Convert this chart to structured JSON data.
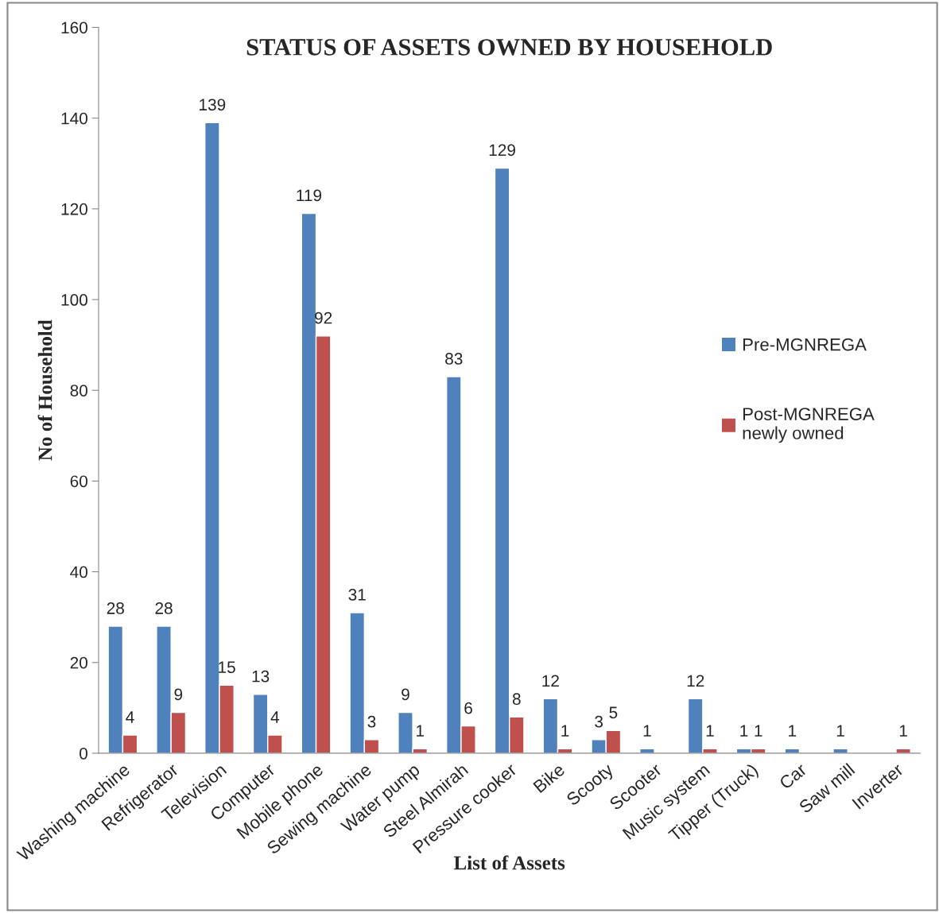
{
  "chart_data": {
    "type": "bar",
    "title": "STATUS OF ASSETS OWNED BY HOUSEHOLD",
    "xlabel": "List of Assets",
    "ylabel": "No of Household",
    "categories": [
      "Washing machine",
      "Refrigerator",
      "Television",
      "Computer",
      "Mobile phone",
      "Sewing machine",
      "Water pump",
      "Steel Almirah",
      "Pressure cooker",
      "Bike",
      "Scooty",
      "Scooter",
      "Music system",
      "Tipper (Truck)",
      "Car",
      "Saw mill",
      "Inverter"
    ],
    "series": [
      {
        "name": "Pre-MGNREGA",
        "color": "#4f81bd",
        "values": [
          28,
          28,
          139,
          13,
          119,
          31,
          9,
          83,
          129,
          12,
          3,
          1,
          12,
          1,
          1,
          1,
          null
        ]
      },
      {
        "name": "Post-MGNREGA\nnewly owned",
        "color": "#c0504d",
        "values": [
          4,
          9,
          15,
          4,
          92,
          3,
          1,
          6,
          8,
          1,
          5,
          null,
          1,
          1,
          null,
          null,
          1
        ]
      }
    ],
    "ylim": [
      0,
      160
    ],
    "yticks": [
      0,
      20,
      40,
      60,
      80,
      100,
      120,
      140,
      160
    ],
    "data_labels": true,
    "grid": false,
    "legend": "right"
  }
}
